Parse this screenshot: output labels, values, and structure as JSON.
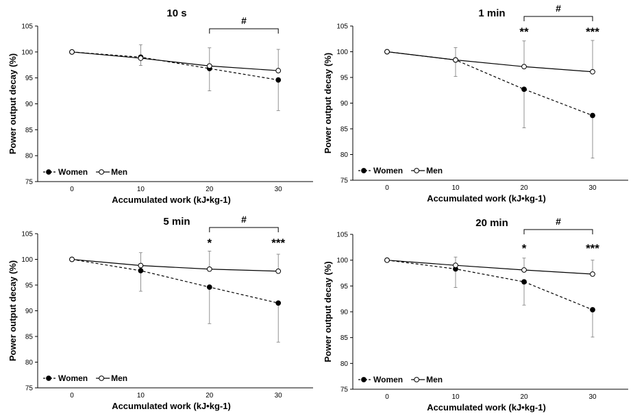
{
  "chart_data": [
    {
      "type": "line",
      "title": "10 s",
      "xlabel": "Accumulated work (kJ•kg-1)",
      "ylabel": "Power output decay (%)",
      "x": [
        0,
        10,
        20,
        30
      ],
      "xticks": [
        "0",
        "10",
        "20",
        "30"
      ],
      "ylim": [
        75,
        105
      ],
      "yticks": [
        "75",
        "80",
        "85",
        "90",
        "95",
        "100",
        "105"
      ],
      "legend_position": "bottom-left",
      "series": [
        {
          "name": "Women",
          "values": [
            100,
            99.0,
            96.8,
            94.6
          ],
          "error": [
            0,
            1.6,
            4.3,
            5.9
          ],
          "style": "dashed",
          "marker": "filled"
        },
        {
          "name": "Men",
          "values": [
            100,
            98.8,
            97.3,
            96.4
          ],
          "error": [
            0,
            2.6,
            3.5,
            4.1
          ],
          "style": "solid",
          "marker": "open"
        }
      ],
      "annotations": [
        {
          "text": "#",
          "type": "bracket",
          "from": 20,
          "to": 30
        }
      ]
    },
    {
      "type": "line",
      "title": "1 min",
      "xlabel": "Accumulated work (kJ•kg-1)",
      "ylabel": "Power output decay (%)",
      "x": [
        0,
        10,
        20,
        30
      ],
      "xticks": [
        "0",
        "10",
        "20",
        "30"
      ],
      "ylim": [
        75,
        105
      ],
      "yticks": [
        "75",
        "80",
        "85",
        "90",
        "95",
        "100",
        "105"
      ],
      "legend_position": "bottom-left",
      "series": [
        {
          "name": "Women",
          "values": [
            100,
            98.4,
            92.7,
            87.6
          ],
          "error": [
            0,
            3.2,
            7.5,
            8.3
          ],
          "style": "dashed",
          "marker": "filled"
        },
        {
          "name": "Men",
          "values": [
            100,
            98.4,
            97.1,
            96.1
          ],
          "error": [
            0,
            2.4,
            5.0,
            6.1
          ],
          "style": "solid",
          "marker": "open"
        }
      ],
      "annotations": [
        {
          "text": "#",
          "type": "bracket",
          "from": 20,
          "to": 30
        },
        {
          "text": "**",
          "type": "star",
          "x": 20
        },
        {
          "text": "***",
          "type": "star",
          "x": 30
        }
      ]
    },
    {
      "type": "line",
      "title": "5 min",
      "xlabel": "Accumulated work (kJ•kg-1)",
      "ylabel": "Power output decay (%)",
      "x": [
        0,
        10,
        20,
        30
      ],
      "xticks": [
        "0",
        "10",
        "20",
        "30"
      ],
      "ylim": [
        75,
        105
      ],
      "yticks": [
        "75",
        "80",
        "85",
        "90",
        "95",
        "100",
        "105"
      ],
      "legend_position": "bottom-left",
      "series": [
        {
          "name": "Women",
          "values": [
            100,
            97.8,
            94.6,
            91.5
          ],
          "error": [
            0,
            4.0,
            7.1,
            7.6
          ],
          "style": "dashed",
          "marker": "filled"
        },
        {
          "name": "Men",
          "values": [
            100,
            98.8,
            98.1,
            97.7
          ],
          "error": [
            0,
            2.5,
            3.5,
            3.3
          ],
          "style": "solid",
          "marker": "open"
        }
      ],
      "annotations": [
        {
          "text": "#",
          "type": "bracket",
          "from": 20,
          "to": 30
        },
        {
          "text": "*",
          "type": "star",
          "x": 20
        },
        {
          "text": "***",
          "type": "star",
          "x": 30
        }
      ]
    },
    {
      "type": "line",
      "title": "20 min",
      "xlabel": "Accumulated work (kJ•kg-1)",
      "ylabel": "Power output decay (%)",
      "x": [
        0,
        10,
        20,
        30
      ],
      "xticks": [
        "0",
        "10",
        "20",
        "30"
      ],
      "ylim": [
        75,
        105
      ],
      "yticks": [
        "75",
        "80",
        "85",
        "90",
        "95",
        "100",
        "105"
      ],
      "legend_position": "bottom-left",
      "series": [
        {
          "name": "Women",
          "values": [
            100,
            98.3,
            95.8,
            90.4
          ],
          "error": [
            0,
            3.6,
            4.5,
            5.3
          ],
          "style": "dashed",
          "marker": "filled"
        },
        {
          "name": "Men",
          "values": [
            100,
            99.0,
            98.1,
            97.3
          ],
          "error": [
            0,
            1.6,
            2.3,
            2.7
          ],
          "style": "solid",
          "marker": "open"
        }
      ],
      "annotations": [
        {
          "text": "#",
          "type": "bracket",
          "from": 20,
          "to": 30
        },
        {
          "text": "*",
          "type": "star",
          "x": 20
        },
        {
          "text": "***",
          "type": "star",
          "x": 30
        }
      ]
    }
  ]
}
